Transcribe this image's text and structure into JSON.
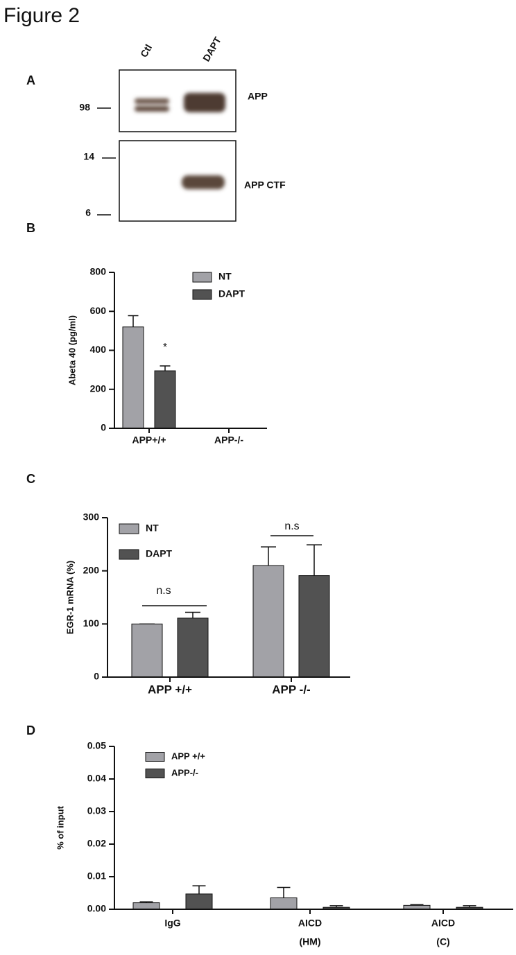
{
  "title": "Figure 2",
  "panel_a": {
    "label": "A",
    "lanes": [
      "Ctl",
      "DAPT"
    ],
    "blots": [
      {
        "markers": [
          98
        ],
        "band": "APP"
      },
      {
        "markers": [
          14,
          6
        ],
        "band": "APP CTF"
      }
    ]
  },
  "chart_data": [
    {
      "type": "bar",
      "panel_label": "B",
      "ylabel": "Abeta 40 (pg/ml)",
      "categories": [
        "APP+/+",
        "APP-/-"
      ],
      "series": [
        {
          "name": "NT",
          "color": "#a2a2a7",
          "values": [
            520,
            0
          ],
          "errors": [
            58,
            0
          ]
        },
        {
          "name": "DAPT",
          "color": "#525252",
          "values": [
            295,
            0
          ],
          "errors": [
            25,
            0
          ]
        }
      ],
      "ylim": [
        0,
        800
      ],
      "yticks": [
        0,
        200,
        400,
        600,
        800
      ],
      "annotations": [
        "*"
      ]
    },
    {
      "type": "bar",
      "panel_label": "C",
      "ylabel": "EGR-1 mRNA (%)",
      "categories": [
        "APP +/+",
        "APP -/-"
      ],
      "series": [
        {
          "name": "NT",
          "color": "#a2a2a7",
          "values": [
            100,
            210
          ],
          "errors": [
            0,
            35
          ]
        },
        {
          "name": "DAPT",
          "color": "#525252",
          "values": [
            111,
            191
          ],
          "errors": [
            11,
            58
          ]
        }
      ],
      "ylim": [
        0,
        300
      ],
      "yticks": [
        0,
        100,
        200,
        300
      ],
      "annotations": [
        "n.s",
        "n.s"
      ]
    },
    {
      "type": "bar",
      "panel_label": "D",
      "ylabel": "% of input",
      "categories": [
        "IgG",
        "AICD",
        "AICD"
      ],
      "category_sublabels": [
        null,
        "(HM)",
        "(C)"
      ],
      "series": [
        {
          "name": "APP +/+",
          "color": "#a2a2a7",
          "values": [
            0.002,
            0.0035,
            0.0012
          ],
          "errors": [
            0.0003,
            0.0032,
            0.0002
          ]
        },
        {
          "name": "APP-/-",
          "color": "#525252",
          "values": [
            0.0047,
            0.0006,
            0.0006
          ],
          "errors": [
            0.0025,
            0.0005,
            0.0005
          ]
        }
      ],
      "ylim": [
        0,
        0.05
      ],
      "yticks": [
        {
          "value": 0,
          "label": "0.00"
        },
        0.01,
        0.02,
        0.03,
        0.04,
        0.05
      ]
    }
  ]
}
